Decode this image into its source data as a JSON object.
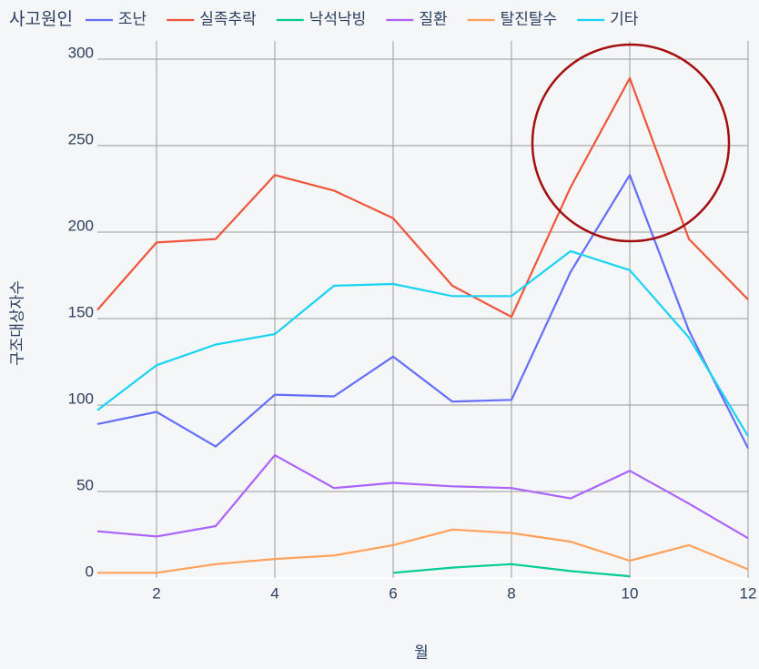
{
  "chart_data": {
    "type": "line",
    "legend_title": "사고원인",
    "x_label": "월",
    "y_label": "구조대상자수",
    "x": [
      1,
      2,
      3,
      4,
      5,
      6,
      7,
      8,
      9,
      10,
      11,
      12
    ],
    "xlim": [
      1,
      12
    ],
    "xticks": [
      2,
      4,
      6,
      8,
      10,
      12
    ],
    "ylim": [
      0,
      300
    ],
    "yticks": [
      0,
      50,
      100,
      150,
      200,
      250,
      300
    ],
    "grid": true,
    "legend_position": "top",
    "series": [
      {
        "name": "조난",
        "color": "#636efa",
        "values": [
          89,
          96,
          76,
          106,
          105,
          128,
          102,
          103,
          177,
          233,
          143,
          75
        ]
      },
      {
        "name": "실족추락",
        "color": "#ef553b",
        "values": [
          155,
          194,
          196,
          233,
          224,
          208,
          169,
          151,
          226,
          289,
          196,
          161
        ]
      },
      {
        "name": "낙석낙빙",
        "color": "#00cc96",
        "values": [
          null,
          null,
          null,
          null,
          null,
          3,
          6,
          8,
          4,
          1,
          null,
          null
        ]
      },
      {
        "name": "질환",
        "color": "#ab63fa",
        "values": [
          27,
          24,
          30,
          71,
          52,
          55,
          53,
          52,
          46,
          62,
          43,
          23
        ]
      },
      {
        "name": "탈진탈수",
        "color": "#ffa15a",
        "values": [
          3,
          3,
          8,
          11,
          13,
          19,
          28,
          26,
          21,
          10,
          19,
          5
        ]
      },
      {
        "name": "기타",
        "color": "#19d3f3",
        "values": [
          97,
          123,
          135,
          141,
          169,
          170,
          163,
          163,
          189,
          178,
          139,
          82
        ]
      }
    ]
  }
}
